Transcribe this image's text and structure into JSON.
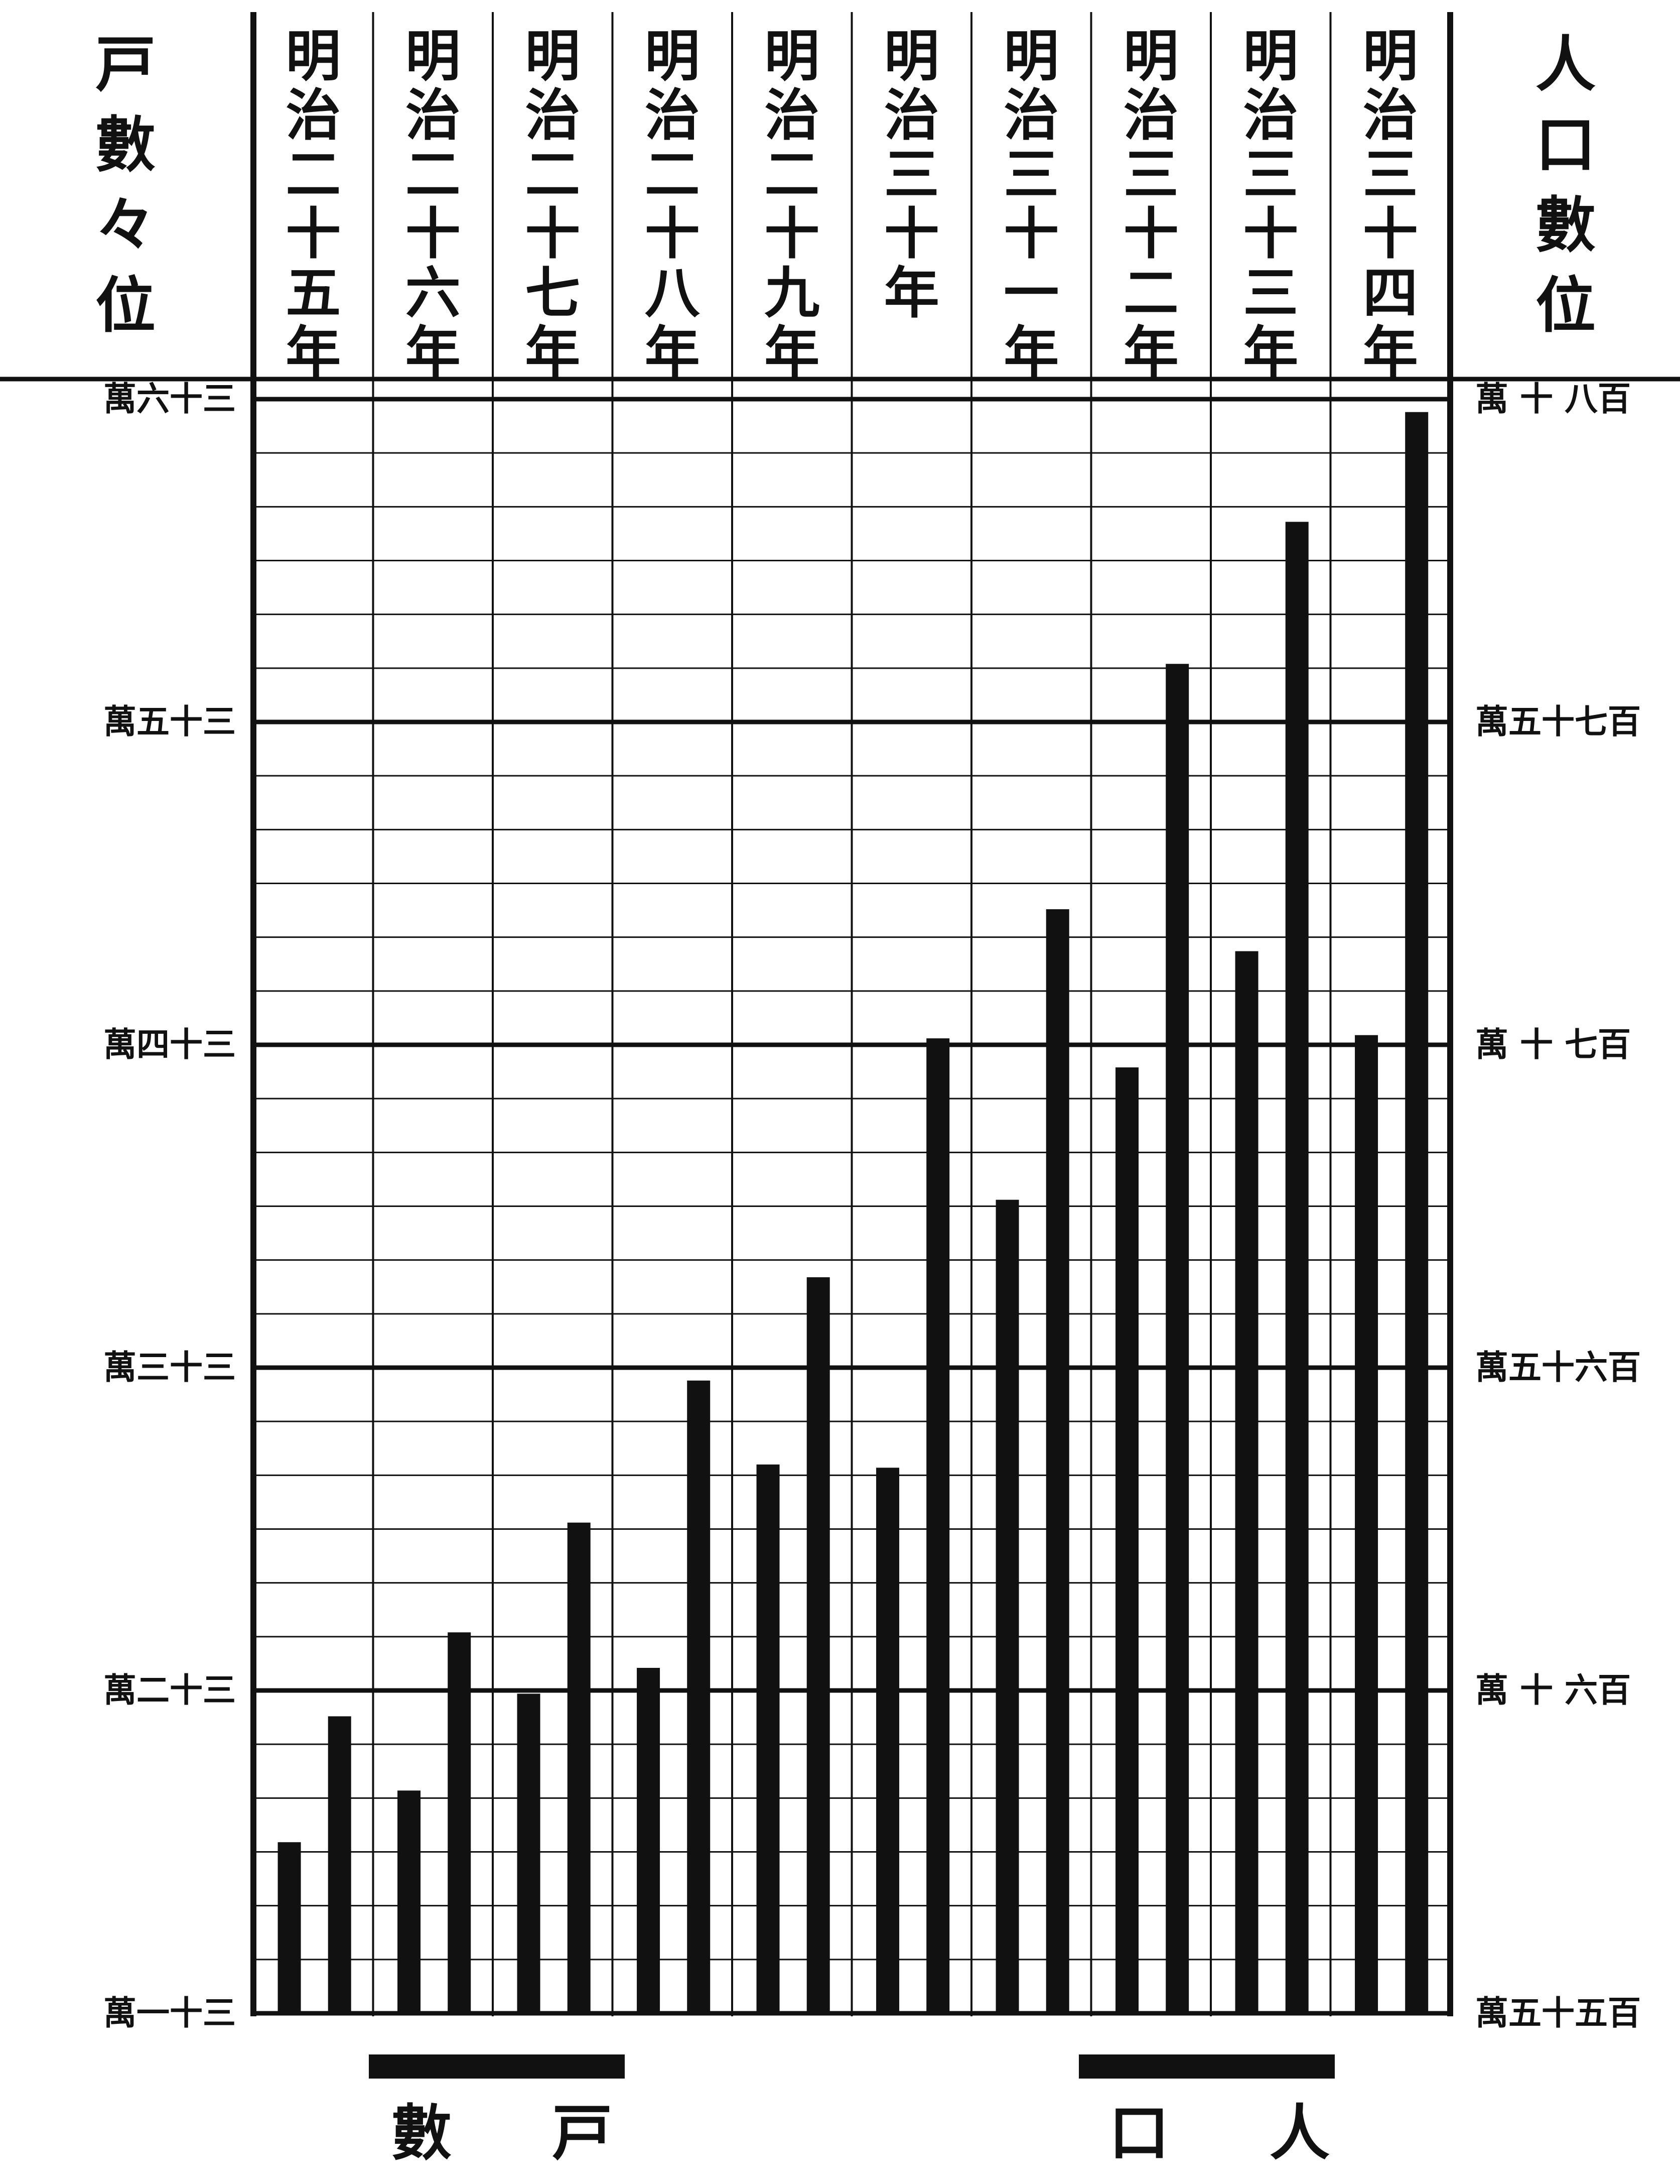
{
  "chart_data": {
    "type": "bar",
    "categories": [
      "明治二十五年",
      "明治二十六年",
      "明治二十七年",
      "明治二十八年",
      "明治二十九年",
      "明治三十年",
      "明治三十一年",
      "明治三十二年",
      "明治三十三年",
      "明治三十四年"
    ],
    "left_axis_title": "戸數々位",
    "right_axis_title": "人口數位",
    "left_ticks": [
      "萬六十三",
      "萬五十三",
      "萬四十三",
      "萬三十三",
      "萬二十三",
      "萬一十三"
    ],
    "right_ticks": [
      "萬 十 八百",
      "萬五十七百",
      "萬 十 七百",
      "萬五十六百",
      "萬 十 六百",
      "萬五十五百"
    ],
    "series": [
      {
        "name": "戸數",
        "unit": "萬",
        "ylim": [
          31,
          36
        ],
        "values": [
          31.53,
          31.69,
          31.99,
          32.07,
          32.7,
          32.69,
          33.52,
          33.93,
          34.29,
          34.03
        ]
      },
      {
        "name": "人口",
        "unit": "萬",
        "ylim": [
          555,
          580
        ],
        "values": [
          559.6,
          560.9,
          562.6,
          564.8,
          566.4,
          570.1,
          572.1,
          575.9,
          578.1,
          579.8
        ]
      }
    ],
    "legend": {
      "households": "戸數",
      "population": "人口"
    },
    "grid": true
  }
}
